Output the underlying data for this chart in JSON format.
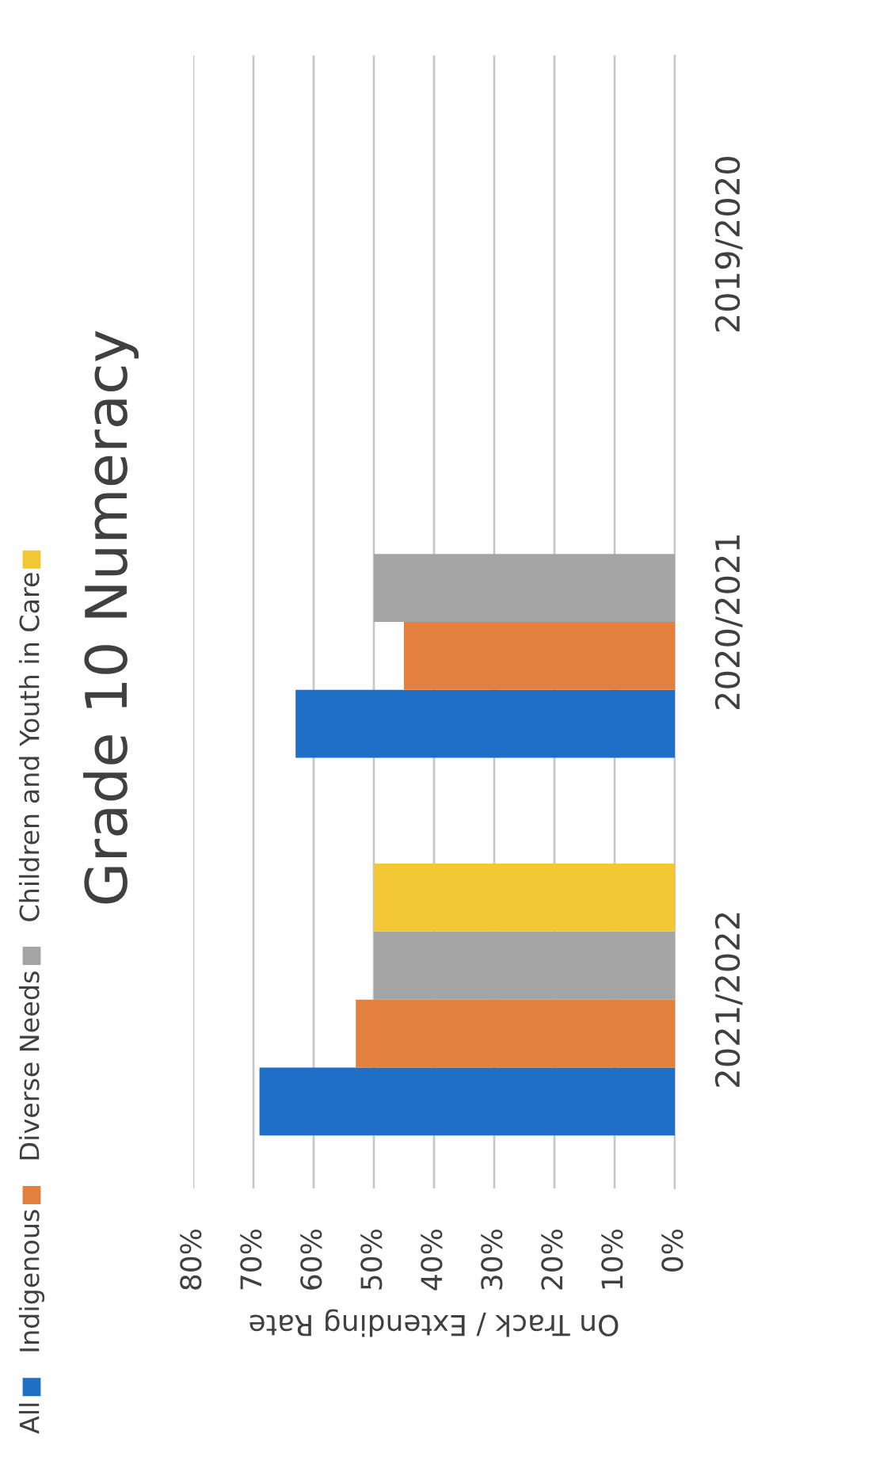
{
  "chart_data": {
    "type": "bar",
    "orientation": "horizontal",
    "title": "Grade 10 Numeracy",
    "xlabel": "On Track / Extending Rate",
    "categories": [
      "2019/2020",
      "2020/2021",
      "2021/2022"
    ],
    "series": [
      {
        "name": "All",
        "color": "#1f6fc6",
        "values": [
          null,
          63,
          69
        ]
      },
      {
        "name": "Indigenous",
        "color": "#e3803e",
        "values": [
          null,
          45,
          53
        ]
      },
      {
        "name": "Diverse Needs",
        "color": "#a5a5a5",
        "values": [
          null,
          50,
          50
        ]
      },
      {
        "name": "Children and Youth in Care",
        "color": "#f2c733",
        "values": [
          null,
          null,
          50
        ]
      }
    ],
    "xlim": [
      80,
      0
    ],
    "xticks": [
      {
        "value": 0,
        "label": "0%"
      },
      {
        "value": 10,
        "label": "10%"
      },
      {
        "value": 20,
        "label": "20%"
      },
      {
        "value": 30,
        "label": "30%"
      },
      {
        "value": 40,
        "label": "40%"
      },
      {
        "value": 50,
        "label": "50%"
      },
      {
        "value": 60,
        "label": "60%"
      },
      {
        "value": 70,
        "label": "70%"
      },
      {
        "value": 80,
        "label": "80%"
      }
    ],
    "grid": "x",
    "legend": "left"
  }
}
